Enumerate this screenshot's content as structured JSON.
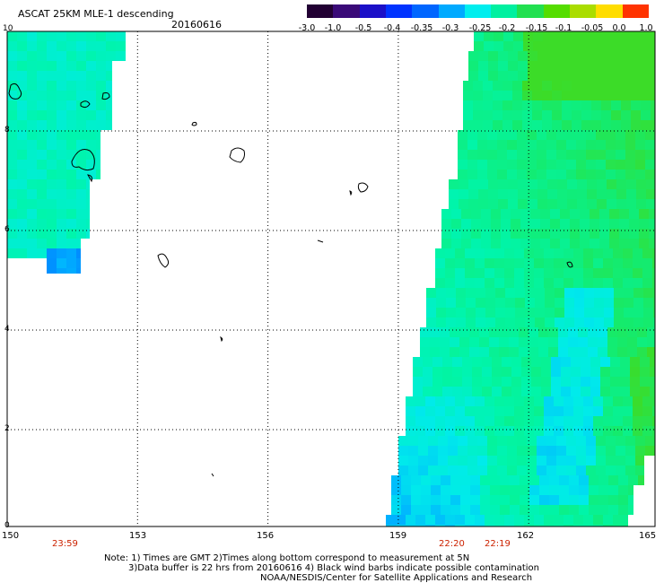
{
  "header": {
    "title": "ASCAT 25KM MLE-1 descending",
    "date": "20160616"
  },
  "colorbar": {
    "ticks": [
      "-3.0",
      "-1.0",
      "-0.5",
      "-0.4",
      "-0.35",
      "-0.3",
      "-0.25",
      "-0.2",
      "-0.15",
      "-0.1",
      "-0.05",
      "0.0",
      "1.0"
    ]
  },
  "axes": {
    "y_ticks": [
      "10",
      "8",
      "6",
      "4",
      "2",
      "0"
    ],
    "x_ticks": [
      "150",
      "153",
      "156",
      "159",
      "162",
      "165"
    ]
  },
  "pass_times": [
    "23:59",
    "22:20",
    "22:19"
  ],
  "notes": {
    "line1": "Note: 1) Times are GMT 2)Times along bottom correspond to measurement at 5N",
    "line2": "3)Data buffer is 22 hrs from 20160616 4) Black wind barbs indicate possible contamination",
    "line3": "NOAA/NESDIS/Center for Satellite Applications and Research"
  },
  "chart_data": {
    "type": "heatmap",
    "title": "ASCAT 25KM MLE-1 descending",
    "date": "20160616",
    "x_range_deg_lon": [
      150,
      165
    ],
    "y_range_deg_lat": [
      0,
      10
    ],
    "grid": true,
    "color_scale": [
      "-3.0",
      "-1.0",
      "-0.5",
      "-0.4",
      "-0.35",
      "-0.3",
      "-0.25",
      "-0.2",
      "-0.15",
      "-0.1",
      "-0.05",
      "0.0",
      "1.0"
    ],
    "palette": [
      "#220033",
      "#3a0a78",
      "#1b10c8",
      "#0033ff",
      "#0066ff",
      "#00aaff",
      "#00eeee",
      "#00f0a0",
      "#22e050",
      "#55dd00",
      "#aadd00",
      "#ffdd00",
      "#ff3300"
    ]
  }
}
